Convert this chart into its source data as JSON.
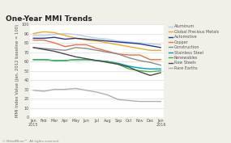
{
  "title": "One-Year MMI Trends",
  "ylabel": "MMI Index Value (Jan. 2012 baseline = 100)",
  "months": [
    "Jan\n2015",
    "Feb",
    "Mar",
    "Apr",
    "May",
    "Jun",
    "Jul",
    "Aug",
    "Sep",
    "Oct",
    "Nov",
    "Dec",
    "Jan\n2016"
  ],
  "ylim": [
    0,
    100
  ],
  "yticks": [
    0,
    10,
    20,
    30,
    40,
    50,
    60,
    70,
    80,
    90,
    100
  ],
  "series": {
    "Aluminum": {
      "color": "#b8cfe8",
      "values": [
        88,
        88,
        89,
        90,
        89,
        87,
        85,
        84,
        82,
        81,
        80,
        79,
        78
      ]
    },
    "Global Precious Metals": {
      "color": "#f5a623",
      "values": [
        90,
        92,
        91,
        88,
        85,
        83,
        82,
        80,
        78,
        76,
        74,
        72,
        72
      ]
    },
    "Automotive": {
      "color": "#1f3a8f",
      "values": [
        85,
        85,
        86,
        84,
        85,
        84,
        83,
        82,
        81,
        80,
        79,
        77,
        75
      ]
    },
    "Copper": {
      "color": "#e8733a",
      "values": [
        83,
        83,
        80,
        76,
        78,
        78,
        74,
        71,
        68,
        67,
        67,
        62,
        62
      ]
    },
    "Construction": {
      "color": "#8c8c8c",
      "values": [
        75,
        74,
        73,
        72,
        75,
        74,
        72,
        70,
        68,
        64,
        61,
        59,
        56
      ]
    },
    "Stainless Steel": {
      "color": "#00a0b0",
      "values": [
        62,
        62,
        61,
        61,
        62,
        62,
        61,
        60,
        58,
        55,
        53,
        52,
        52
      ]
    },
    "Renewables": {
      "color": "#4caf50",
      "values": [
        62,
        62,
        61,
        61,
        62,
        62,
        61,
        60,
        57,
        52,
        50,
        49,
        50
      ]
    },
    "Raw Steels": {
      "color": "#4a4a4a",
      "values": [
        75,
        73,
        71,
        68,
        65,
        63,
        61,
        59,
        57,
        54,
        49,
        45,
        48
      ]
    },
    "Rare Earths": {
      "color": "#b0b0b0",
      "values": [
        29,
        28,
        30,
        30,
        31,
        29,
        27,
        24,
        19,
        18,
        17,
        17,
        17
      ]
    }
  },
  "legend_order": [
    "Aluminum",
    "Global Precious Metals",
    "Automotive",
    "Copper",
    "Construction",
    "Stainless Steel",
    "Renewables",
    "Raw Steels",
    "Rare Earths"
  ],
  "background_color": "#f0efe8",
  "plot_bg": "#ffffff",
  "title_fontsize": 6.5,
  "label_fontsize": 3.8,
  "tick_fontsize": 3.5,
  "legend_fontsize": 3.5,
  "footer": "© MetalMiner™. All rights reserved."
}
